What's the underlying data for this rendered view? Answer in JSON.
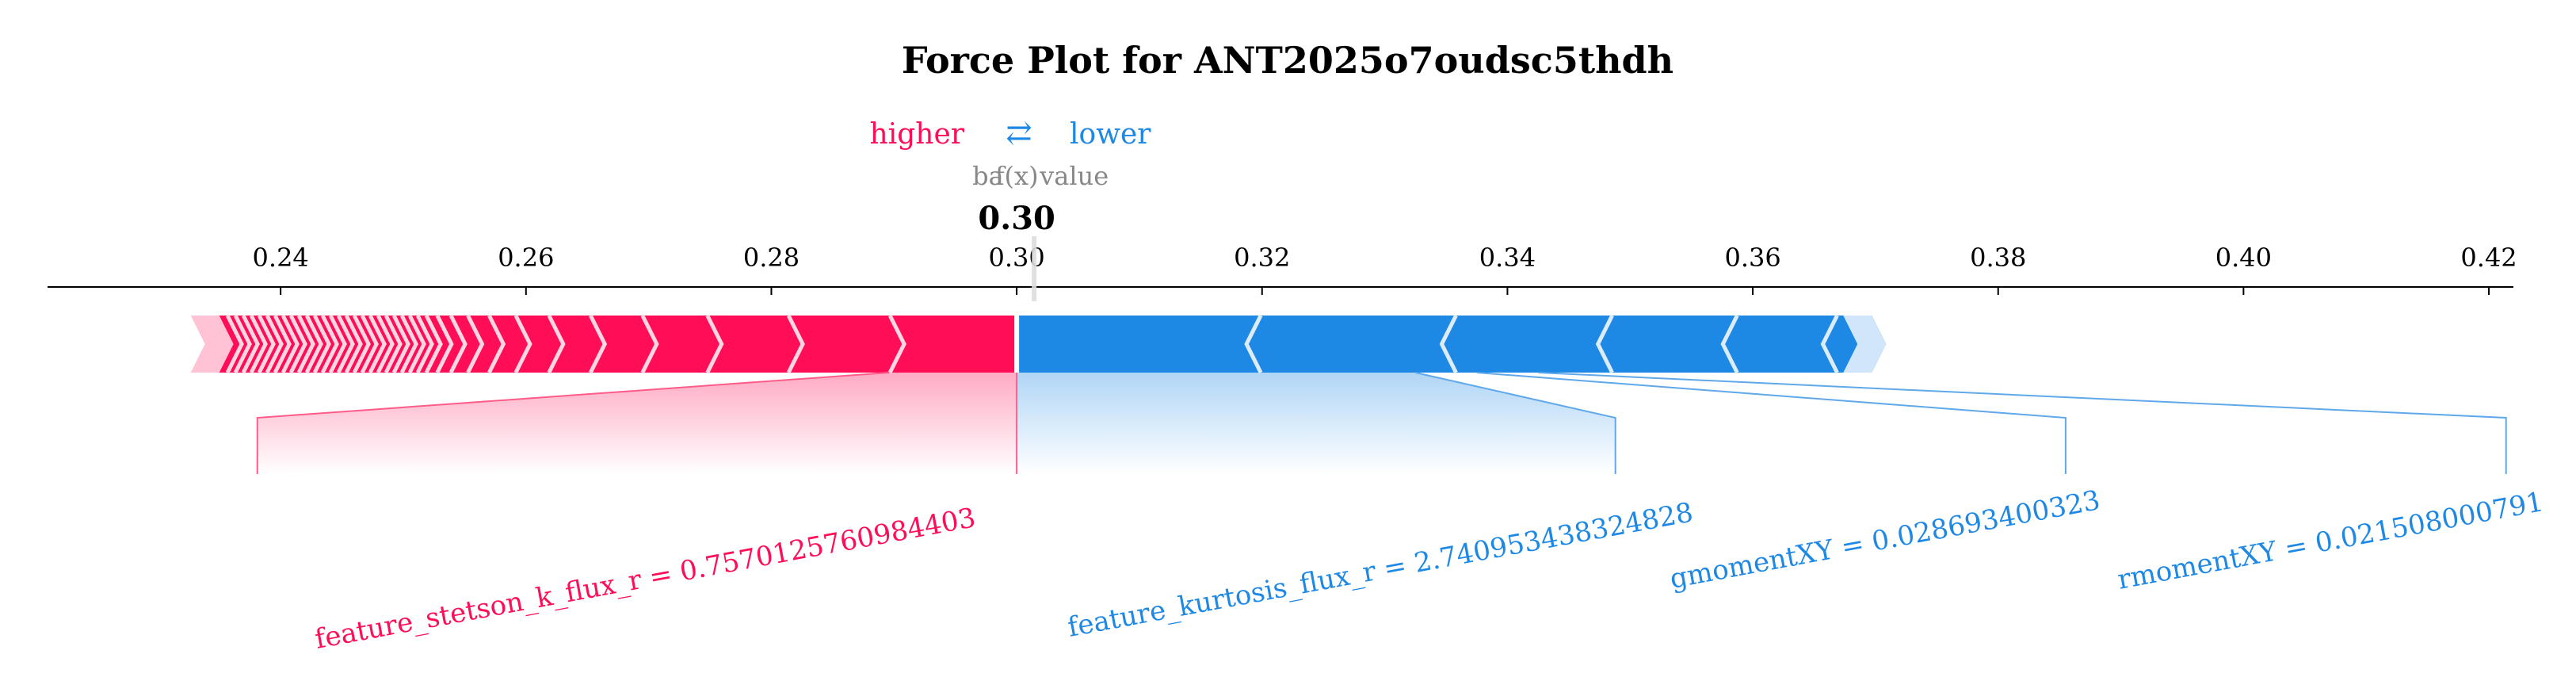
{
  "chart_data": {
    "type": "force-plot",
    "title": "Force Plot for ANT2025o7oudsc5thdh",
    "legend": {
      "higher_label": "higher",
      "lower_label": "lower",
      "arrows_glyph": "⇄",
      "higher_color": "#ff0d57",
      "lower_color": "#1e88e5"
    },
    "output_label": "base value",
    "output_label_overlap": "f(x)",
    "output_value": 0.3,
    "output_value_text": "0.30",
    "xlim": [
      0.221,
      0.422
    ],
    "ticks": [
      0.24,
      0.26,
      0.28,
      0.3,
      0.32,
      0.34,
      0.36,
      0.38,
      0.4,
      0.42
    ],
    "tick_labels": [
      "0.24",
      "0.26",
      "0.28",
      "0.30",
      "0.32",
      "0.34",
      "0.36",
      "0.38",
      "0.40",
      "0.42"
    ],
    "positive_range": [
      0.2328,
      0.3
    ],
    "negative_range": [
      0.3,
      0.3697
    ],
    "features": [
      {
        "label": "feature_stetson_k_flux_r = 0.7570125760984403",
        "direction": "positive",
        "segment": [
          0.2896,
          0.3
        ],
        "label_anchor": 0.2381
      },
      {
        "label": "feature_kurtosis_flux_r = 2.740953438324828",
        "direction": "negative",
        "segment": [
          0.32,
          0.3325
        ],
        "label_anchor": 0.3488
      },
      {
        "label": "gmomentXY = 0.028693400323",
        "direction": "negative",
        "segment": [
          0.3325,
          0.3375
        ],
        "label_anchor": 0.3855
      },
      {
        "label": "rmomentXY = 0.021508000791",
        "direction": "negative",
        "segment": [
          0.3375,
          0.3425
        ],
        "label_anchor": 0.4214
      }
    ]
  }
}
